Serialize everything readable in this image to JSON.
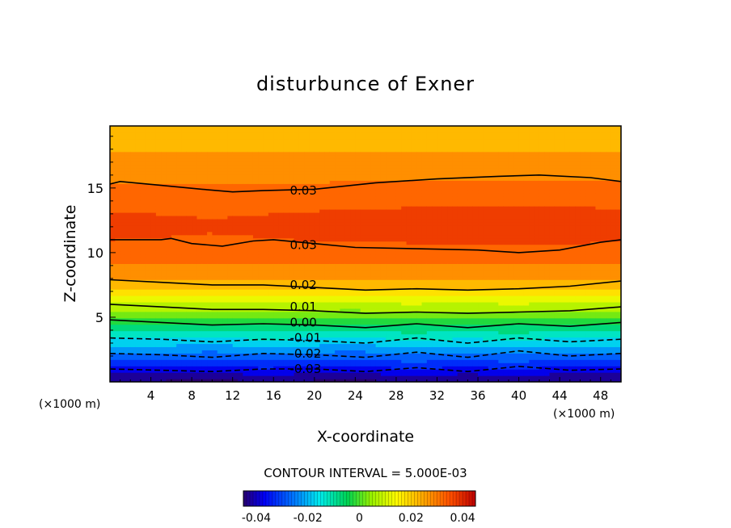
{
  "chart_data": {
    "type": "contour",
    "title": "disturbunce of Exner",
    "xlabel": "X-coordinate",
    "ylabel": "Z-coordinate",
    "x_unit_left": "(×1000 m)",
    "x_unit_right": "(×1000 m)",
    "x_ticks": [
      4,
      8,
      12,
      16,
      20,
      24,
      28,
      32,
      36,
      40,
      44,
      48
    ],
    "y_ticks": [
      5,
      10,
      15
    ],
    "xlim": [
      0,
      50
    ],
    "ylim": [
      0,
      19.8
    ],
    "contour_interval_text": "CONTOUR INTERVAL = 5.000E-03",
    "contour_interval": 0.005,
    "level_range": [
      -0.045,
      0.045
    ],
    "contour_labels": [
      {
        "text": "0.03",
        "x": 17.6,
        "z": 14.8
      },
      {
        "text": "0.03",
        "x": 17.6,
        "z": 10.6
      },
      {
        "text": "0.02",
        "x": 17.6,
        "z": 7.5
      },
      {
        "text": "0.01",
        "x": 17.6,
        "z": 5.8
      },
      {
        "text": "0.00",
        "x": 17.6,
        "z": 4.6
      },
      {
        "text": "-0.01",
        "x": 17.6,
        "z": 3.4
      },
      {
        "text": "-0.02",
        "x": 17.6,
        "z": 2.2
      },
      {
        "text": "-0.03",
        "x": 17.6,
        "z": 1.0
      }
    ],
    "labeled_lines": [
      {
        "level": 0.03,
        "dashed": false,
        "points": [
          [
            0,
            15.3
          ],
          [
            1,
            15.5
          ],
          [
            5,
            15.2
          ],
          [
            9,
            14.9
          ],
          [
            12,
            14.7
          ],
          [
            15,
            14.8
          ],
          [
            20,
            14.9
          ],
          [
            26,
            15.4
          ],
          [
            32,
            15.7
          ],
          [
            38,
            15.9
          ],
          [
            42,
            16.0
          ],
          [
            47,
            15.8
          ],
          [
            50,
            15.5
          ]
        ]
      },
      {
        "level": 0.03,
        "dashed": false,
        "points": [
          [
            0,
            11.0
          ],
          [
            5,
            11.0
          ],
          [
            6,
            11.1
          ],
          [
            8,
            10.7
          ],
          [
            11,
            10.5
          ],
          [
            14,
            10.9
          ],
          [
            16,
            11.0
          ],
          [
            20,
            10.7
          ],
          [
            24,
            10.4
          ],
          [
            30,
            10.3
          ],
          [
            36,
            10.2
          ],
          [
            40,
            10.0
          ],
          [
            44,
            10.2
          ],
          [
            48,
            10.8
          ],
          [
            50,
            11.0
          ]
        ]
      },
      {
        "level": 0.02,
        "dashed": false,
        "points": [
          [
            0,
            7.9
          ],
          [
            5,
            7.7
          ],
          [
            10,
            7.5
          ],
          [
            15,
            7.5
          ],
          [
            20,
            7.3
          ],
          [
            25,
            7.1
          ],
          [
            30,
            7.2
          ],
          [
            35,
            7.1
          ],
          [
            40,
            7.2
          ],
          [
            45,
            7.4
          ],
          [
            50,
            7.8
          ]
        ]
      },
      {
        "level": 0.01,
        "dashed": false,
        "points": [
          [
            0,
            6.0
          ],
          [
            5,
            5.8
          ],
          [
            10,
            5.6
          ],
          [
            15,
            5.6
          ],
          [
            20,
            5.5
          ],
          [
            25,
            5.3
          ],
          [
            30,
            5.4
          ],
          [
            35,
            5.3
          ],
          [
            40,
            5.4
          ],
          [
            45,
            5.5
          ],
          [
            50,
            5.8
          ]
        ]
      },
      {
        "level": 0.0,
        "dashed": false,
        "points": [
          [
            0,
            4.8
          ],
          [
            5,
            4.6
          ],
          [
            10,
            4.4
          ],
          [
            15,
            4.5
          ],
          [
            20,
            4.4
          ],
          [
            25,
            4.2
          ],
          [
            30,
            4.5
          ],
          [
            35,
            4.2
          ],
          [
            40,
            4.5
          ],
          [
            45,
            4.3
          ],
          [
            50,
            4.6
          ]
        ]
      },
      {
        "level": -0.01,
        "dashed": true,
        "points": [
          [
            0,
            3.4
          ],
          [
            5,
            3.3
          ],
          [
            10,
            3.1
          ],
          [
            15,
            3.3
          ],
          [
            20,
            3.2
          ],
          [
            25,
            3.0
          ],
          [
            30,
            3.4
          ],
          [
            35,
            3.0
          ],
          [
            40,
            3.4
          ],
          [
            45,
            3.1
          ],
          [
            50,
            3.3
          ]
        ]
      },
      {
        "level": -0.02,
        "dashed": true,
        "points": [
          [
            0,
            2.2
          ],
          [
            5,
            2.1
          ],
          [
            10,
            1.9
          ],
          [
            15,
            2.2
          ],
          [
            20,
            2.1
          ],
          [
            25,
            1.9
          ],
          [
            30,
            2.3
          ],
          [
            35,
            1.9
          ],
          [
            40,
            2.4
          ],
          [
            45,
            2.0
          ],
          [
            50,
            2.2
          ]
        ]
      },
      {
        "level": -0.03,
        "dashed": true,
        "points": [
          [
            0,
            1.0
          ],
          [
            5,
            0.9
          ],
          [
            10,
            0.8
          ],
          [
            15,
            1.0
          ],
          [
            20,
            1.0
          ],
          [
            25,
            0.8
          ],
          [
            30,
            1.1
          ],
          [
            35,
            0.8
          ],
          [
            40,
            1.2
          ],
          [
            45,
            0.9
          ],
          [
            50,
            1.0
          ]
        ]
      }
    ],
    "colorbar": {
      "ticks": [
        -0.04,
        -0.02,
        0,
        0.02,
        0.04
      ],
      "tick_labels": [
        "-0.04",
        "-0.02",
        "0",
        "0.02",
        "0.04"
      ]
    },
    "grid": false
  }
}
